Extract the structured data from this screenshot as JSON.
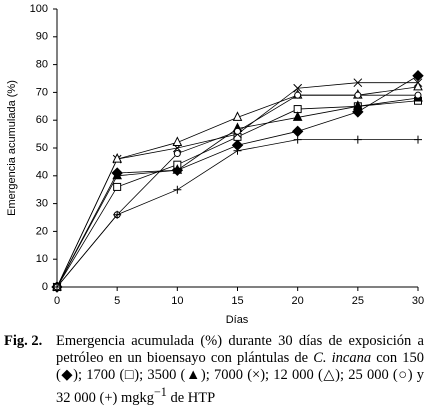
{
  "chart_data": {
    "type": "line",
    "y_label": "Emergencia acumulada (%)",
    "x_label": "Días",
    "x": [
      0,
      5,
      10,
      15,
      20,
      25,
      30
    ],
    "xlim": [
      0,
      30
    ],
    "xticks": [
      0,
      5,
      10,
      15,
      20,
      25,
      30
    ],
    "ylim": [
      0,
      100
    ],
    "yticks": [
      0,
      10,
      20,
      30,
      40,
      50,
      60,
      70,
      80,
      90,
      100
    ],
    "series": [
      {
        "marker": "diamond",
        "color": "#000000",
        "values": [
          0,
          41,
          42,
          51,
          56,
          63,
          76
        ]
      },
      {
        "marker": "square",
        "color": "#000000",
        "values": [
          0,
          36,
          44,
          54,
          64,
          65,
          67
        ]
      },
      {
        "marker": "triangle-filled",
        "color": "#000000",
        "values": [
          0,
          40,
          42,
          57,
          61,
          65,
          68
        ]
      },
      {
        "marker": "cross",
        "color": "#000000",
        "values": [
          0,
          46,
          50,
          55,
          71.5,
          73.5,
          73.5
        ]
      },
      {
        "marker": "triangle",
        "color": "#000000",
        "values": [
          0,
          46,
          52,
          61,
          69,
          69,
          72
        ]
      },
      {
        "marker": "circle",
        "color": "#000000",
        "values": [
          0,
          26,
          48,
          56,
          69,
          69,
          69
        ]
      },
      {
        "marker": "plus",
        "color": "#000000",
        "values": [
          0,
          26,
          35,
          49,
          53,
          53,
          53
        ]
      }
    ]
  },
  "caption": {
    "label": "Fig. 2.",
    "text_1": "Emergencia acumulada (%) durante 30 días de exposición a petróleo en un bioensayo con plántulas de",
    "species": "C. incana",
    "text_2": "con 150 (◆); 1700 (□); 3500 (▲); 7000 (×); 12 000 (△); 25 000 (○) y 32 000 (+) mgkg",
    "superscript": "−1",
    "text_3": "de HTP"
  }
}
